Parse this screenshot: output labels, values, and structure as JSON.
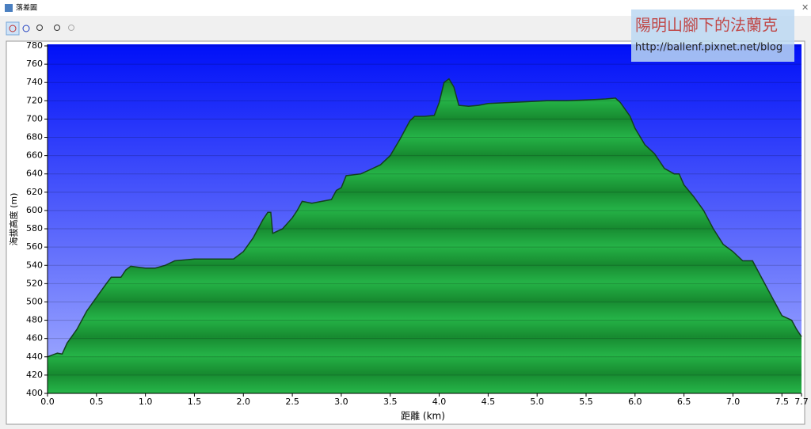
{
  "window": {
    "title": "落差圖"
  },
  "watermark": {
    "title": "陽明山腳下的法蘭克",
    "url": "http://ballenf.pixnet.net/blog"
  },
  "chart_data": {
    "type": "area",
    "xlabel": "距離 (km)",
    "ylabel": "海拔高度 (m)",
    "x": [
      0,
      0.1,
      0.15,
      0.2,
      0.3,
      0.4,
      0.5,
      0.6,
      0.65,
      0.75,
      0.8,
      0.85,
      1.0,
      1.1,
      1.2,
      1.3,
      1.5,
      1.7,
      1.9,
      2.0,
      2.1,
      2.2,
      2.25,
      2.28,
      2.3,
      2.4,
      2.5,
      2.55,
      2.6,
      2.7,
      2.8,
      2.9,
      2.95,
      3.0,
      3.05,
      3.2,
      3.3,
      3.4,
      3.5,
      3.6,
      3.7,
      3.75,
      3.85,
      3.95,
      4.0,
      4.05,
      4.1,
      4.15,
      4.2,
      4.3,
      4.4,
      4.5,
      4.7,
      4.9,
      5.1,
      5.3,
      5.5,
      5.7,
      5.8,
      5.85,
      5.95,
      6.0,
      6.1,
      6.2,
      6.3,
      6.4,
      6.45,
      6.5,
      6.6,
      6.7,
      6.8,
      6.9,
      7.0,
      7.1,
      7.2,
      7.3,
      7.4,
      7.5,
      7.6,
      7.65,
      7.7
    ],
    "series": [
      {
        "color": "#1fa23c",
        "values": [
          440,
          444,
          443,
          455,
          470,
          490,
          505,
          520,
          527,
          527,
          535,
          539,
          537,
          537,
          540,
          545,
          547,
          547,
          547,
          555,
          570,
          590,
          598,
          598,
          575,
          580,
          592,
          600,
          610,
          608,
          610,
          612,
          622,
          625,
          638,
          640,
          645,
          650,
          660,
          678,
          698,
          703,
          703,
          704,
          718,
          740,
          744,
          735,
          715,
          714,
          715,
          717,
          718,
          719,
          720,
          720,
          721,
          722,
          723,
          718,
          703,
          690,
          672,
          662,
          646,
          640,
          640,
          628,
          615,
          600,
          580,
          563,
          555,
          545,
          545,
          525,
          505,
          485,
          480,
          470,
          462
        ]
      }
    ],
    "xlim": [
      0,
      7.7
    ],
    "ylim": [
      400,
      780
    ],
    "xticks": [
      {
        "value": 0,
        "label": "0.0"
      },
      0.5,
      {
        "value": 1,
        "label": "1.0"
      },
      1.5,
      {
        "value": 2,
        "label": "2.0"
      },
      2.5,
      {
        "value": 3,
        "label": "3.0"
      },
      3.5,
      {
        "value": 4,
        "label": "4.0"
      },
      4.5,
      {
        "value": 5,
        "label": "5.0"
      },
      5.5,
      {
        "value": 6,
        "label": "6.0"
      },
      6.5,
      {
        "value": 7,
        "label": "7.0"
      },
      7.5,
      7.7
    ],
    "yticks": [
      400,
      420,
      440,
      460,
      480,
      500,
      520,
      540,
      560,
      580,
      600,
      620,
      640,
      660,
      680,
      700,
      720,
      740,
      760,
      780
    ],
    "grid": true
  }
}
